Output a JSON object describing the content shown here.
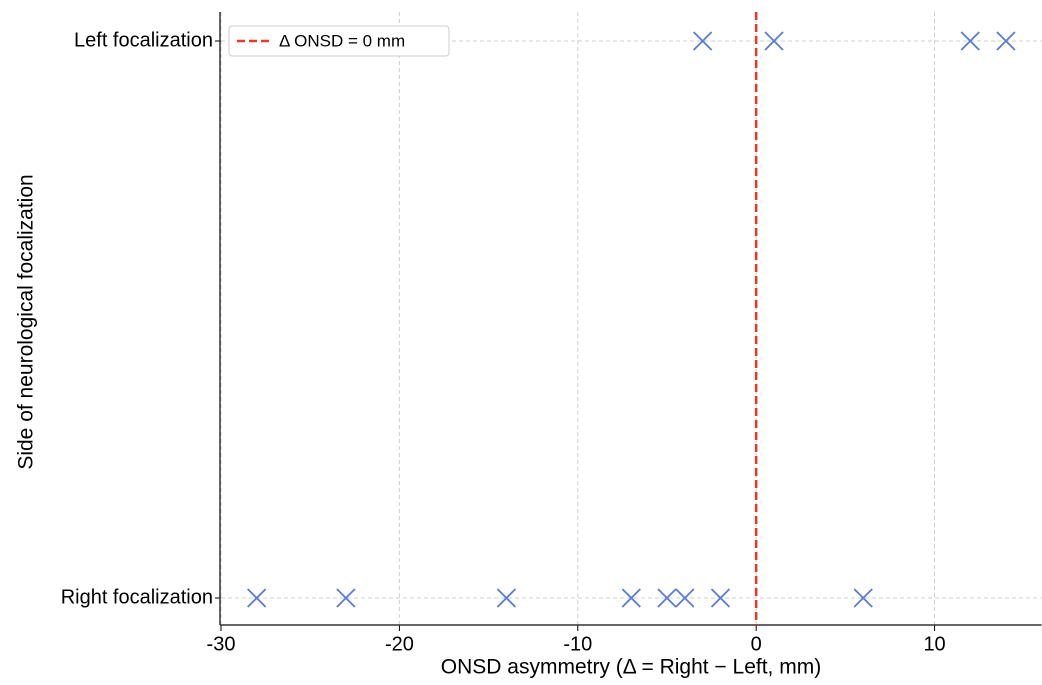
{
  "chart_data": {
    "type": "scatter",
    "x_label": "ONSD asymmetry (Δ = Right − Left, mm)",
    "y_label": "Side of neurological focalization",
    "categories": [
      "Left focalization",
      "Right focalization"
    ],
    "values": [
      [
        -3,
        1,
        12,
        14
      ],
      [
        -28,
        -23,
        -14,
        -7,
        -5,
        -4,
        -2,
        6
      ]
    ],
    "color": "#5b7bd5",
    "xlim": [
      -30,
      16
    ],
    "xticks": [
      -30,
      -20,
      -10,
      0,
      10
    ],
    "grid": true,
    "reference_line": {
      "value": 0,
      "label": "Δ ONSD = 0 mm",
      "color": "#e8392a"
    },
    "legend": "upper left"
  }
}
